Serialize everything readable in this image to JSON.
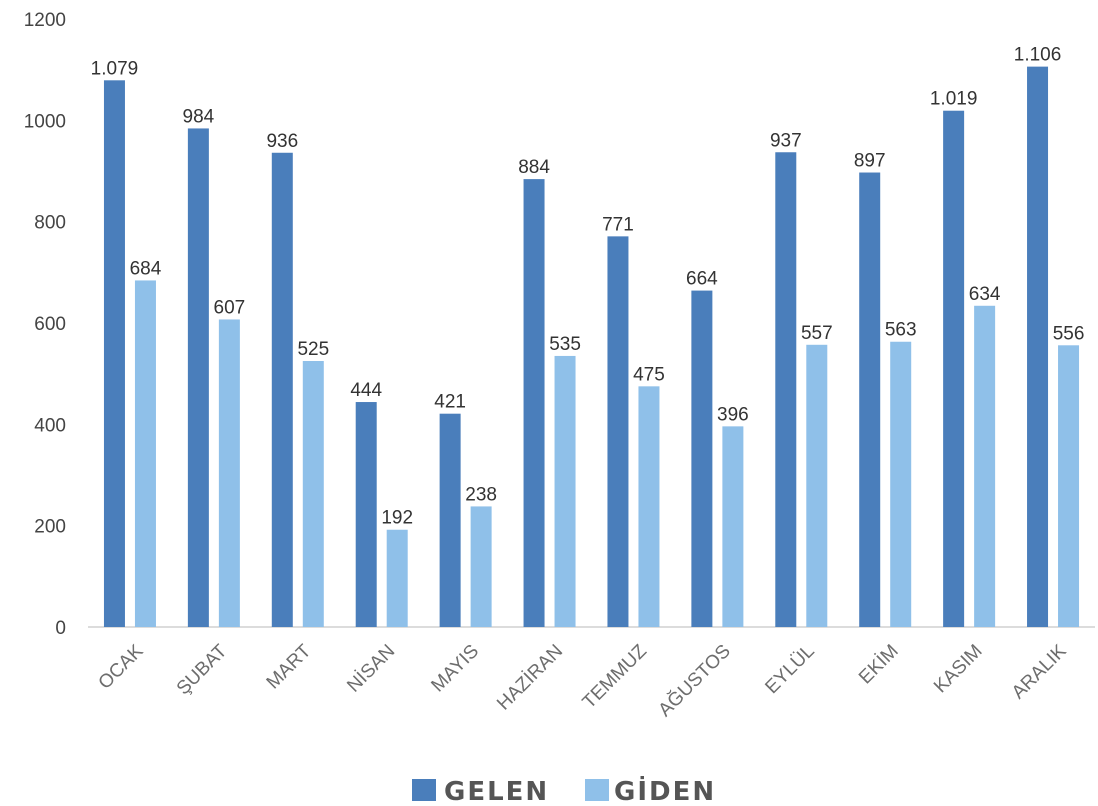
{
  "chart_data": {
    "type": "bar",
    "title": "",
    "xlabel": "",
    "ylabel": "",
    "ylim": [
      0,
      1200
    ],
    "yticks": [
      0,
      200,
      400,
      600,
      800,
      1000,
      1200
    ],
    "grid": false,
    "legend_position": "bottom",
    "categories": [
      "OCAK",
      "ŞUBAT",
      "MART",
      "NİSAN",
      "MAYIS",
      "HAZİRAN",
      "TEMMUZ",
      "AĞUSTOS",
      "EYLÜL",
      "EKİM",
      "KASIM",
      "ARALIK"
    ],
    "series": [
      {
        "name": "GELEN",
        "color": "#4a7ebb",
        "values": [
          1079,
          984,
          936,
          444,
          421,
          884,
          771,
          664,
          937,
          897,
          1019,
          1106
        ],
        "labels": [
          "1.079",
          "984",
          "936",
          "444",
          "421",
          "884",
          "771",
          "664",
          "937",
          "897",
          "1.019",
          "1.106"
        ]
      },
      {
        "name": "GİDEN",
        "color": "#8fc0e9",
        "values": [
          684,
          607,
          525,
          192,
          238,
          535,
          475,
          396,
          557,
          563,
          634,
          556
        ],
        "labels": [
          "684",
          "607",
          "525",
          "192",
          "238",
          "535",
          "475",
          "396",
          "557",
          "563",
          "634",
          "556"
        ]
      }
    ]
  }
}
